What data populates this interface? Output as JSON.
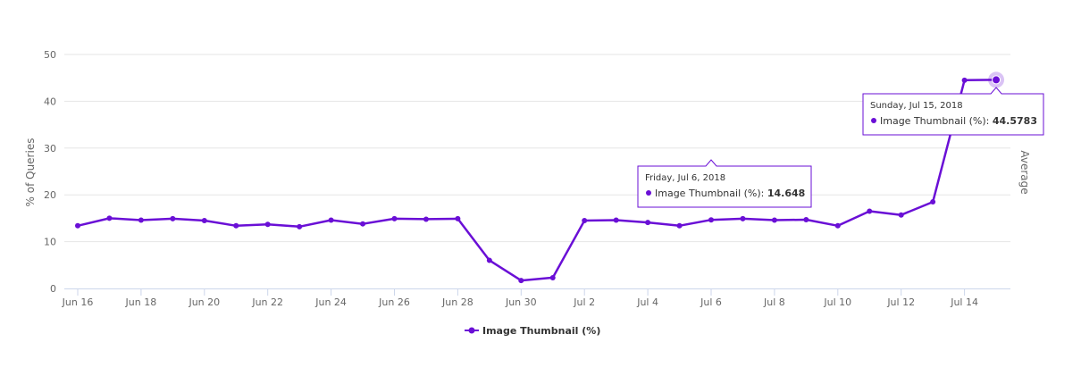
{
  "accent_color": "#6a0fd6",
  "chart_data": {
    "type": "line",
    "x_dates": [
      "2018-06-16",
      "2018-06-17",
      "2018-06-18",
      "2018-06-19",
      "2018-06-20",
      "2018-06-21",
      "2018-06-22",
      "2018-06-23",
      "2018-06-24",
      "2018-06-25",
      "2018-06-26",
      "2018-06-27",
      "2018-06-28",
      "2018-06-29",
      "2018-06-30",
      "2018-07-01",
      "2018-07-02",
      "2018-07-03",
      "2018-07-04",
      "2018-07-05",
      "2018-07-06",
      "2018-07-07",
      "2018-07-08",
      "2018-07-09",
      "2018-07-10",
      "2018-07-11",
      "2018-07-12",
      "2018-07-13",
      "2018-07-14",
      "2018-07-15"
    ],
    "series": [
      {
        "name": "Image Thumbnail (%)",
        "color": "#6a0fd6",
        "values": [
          13.4,
          15.0,
          14.6,
          14.9,
          14.5,
          13.4,
          13.7,
          13.2,
          14.6,
          13.8,
          14.9,
          14.8,
          14.9,
          6.0,
          1.7,
          2.3,
          14.5,
          14.6,
          14.1,
          13.4,
          14.648,
          14.9,
          14.6,
          14.7,
          13.4,
          16.5,
          15.7,
          18.5,
          44.5,
          44.5783
        ]
      }
    ],
    "ylabel": "% of Queries",
    "right_axis_label": "Average",
    "ylim": [
      0,
      50
    ],
    "yticks": [
      "0",
      "10",
      "20",
      "30",
      "40",
      "50"
    ],
    "xtick_labels": [
      "Jun 16",
      "Jun 18",
      "Jun 20",
      "Jun 22",
      "Jun 24",
      "Jun 26",
      "Jun 28",
      "Jun 30",
      "Jul 2",
      "Jul 4",
      "Jul 6",
      "Jul 8",
      "Jul 10",
      "Jul 12",
      "Jul 14"
    ],
    "grid": true,
    "legend_position": "bottom-center",
    "tooltips": [
      {
        "point_index": 20,
        "date_text": "Friday, Jul 6, 2018",
        "series_text": "Image Thumbnail (%):",
        "value_text": "14.648"
      },
      {
        "point_index": 29,
        "date_text": "Sunday, Jul 15, 2018",
        "series_text": "Image Thumbnail (%):",
        "value_text": "44.5783"
      }
    ]
  }
}
